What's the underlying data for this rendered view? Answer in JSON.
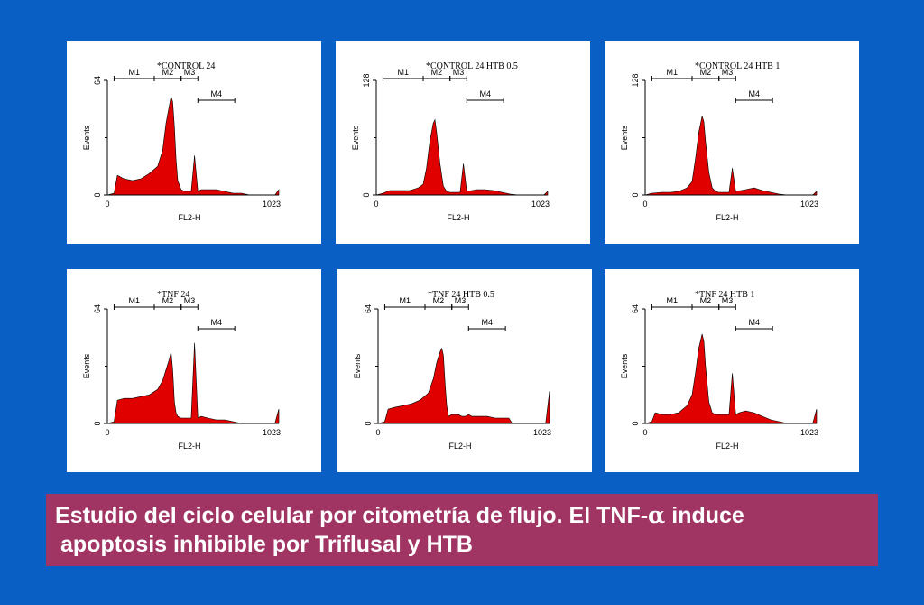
{
  "caption": {
    "line1_pre": "Estudio del ciclo celular por citometría de flujo. El TNF-",
    "alpha": "α",
    "line1_post": " induce",
    "line2": "apoptosis inhibible por Triflusal y HTB"
  },
  "chart_data": [
    {
      "type": "area",
      "title": "*CONTROL 24",
      "xlabel": "FL2-H",
      "ylabel": "Events",
      "xlim": [
        0,
        1023
      ],
      "ylim": [
        0,
        64
      ],
      "xticks": [
        "0",
        "1023"
      ],
      "yticks": [
        "0",
        "64"
      ],
      "markers": [
        {
          "name": "M1",
          "range": [
            40,
            280
          ]
        },
        {
          "name": "M2",
          "range": [
            280,
            440
          ]
        },
        {
          "name": "M3",
          "range": [
            440,
            540
          ]
        },
        {
          "name": "M4",
          "range": [
            540,
            760
          ]
        }
      ],
      "series": [
        {
          "x": [
            0,
            40,
            60,
            100,
            150,
            200,
            250,
            300,
            330,
            350,
            370,
            380,
            390,
            400,
            410,
            420,
            440,
            460,
            480,
            500,
            520,
            540,
            560,
            600,
            650,
            700,
            750,
            800,
            850,
            900,
            950,
            1000,
            1023
          ],
          "y": [
            0,
            1,
            11,
            9,
            8,
            9,
            12,
            16,
            25,
            40,
            50,
            55,
            52,
            38,
            20,
            8,
            3,
            2,
            2,
            2,
            22,
            2,
            3,
            3,
            3,
            2,
            1,
            1,
            0,
            0,
            0,
            0,
            3
          ]
        }
      ]
    },
    {
      "type": "area",
      "title": "*CONTROL 24 HTB 0.5",
      "xlabel": "FL2-H",
      "ylabel": "Events",
      "xlim": [
        0,
        1023
      ],
      "ylim": [
        0,
        128
      ],
      "xticks": [
        "0",
        "1023"
      ],
      "yticks": [
        "0",
        "128"
      ],
      "markers": [
        {
          "name": "M1",
          "range": [
            40,
            280
          ]
        },
        {
          "name": "M2",
          "range": [
            280,
            440
          ]
        },
        {
          "name": "M3",
          "range": [
            440,
            540
          ]
        },
        {
          "name": "M4",
          "range": [
            540,
            760
          ]
        }
      ],
      "series": [
        {
          "x": [
            0,
            40,
            80,
            150,
            200,
            250,
            280,
            300,
            320,
            340,
            350,
            360,
            380,
            400,
            420,
            440,
            460,
            480,
            500,
            520,
            540,
            600,
            650,
            700,
            750,
            800,
            850,
            900,
            950,
            1000,
            1023
          ],
          "y": [
            0,
            2,
            5,
            5,
            5,
            8,
            12,
            30,
            60,
            80,
            84,
            70,
            35,
            10,
            4,
            3,
            3,
            3,
            3,
            35,
            4,
            6,
            6,
            5,
            3,
            1,
            0,
            0,
            0,
            0,
            4
          ]
        }
      ]
    },
    {
      "type": "area",
      "title": "*CONTROL 24 HTB 1",
      "xlabel": "FL2-H",
      "ylabel": "Events",
      "xlim": [
        0,
        1023
      ],
      "ylim": [
        0,
        128
      ],
      "xticks": [
        "0",
        "1023"
      ],
      "yticks": [
        "0",
        "128"
      ],
      "markers": [
        {
          "name": "M1",
          "range": [
            40,
            280
          ]
        },
        {
          "name": "M2",
          "range": [
            280,
            440
          ]
        },
        {
          "name": "M3",
          "range": [
            440,
            540
          ]
        },
        {
          "name": "M4",
          "range": [
            540,
            760
          ]
        }
      ],
      "series": [
        {
          "x": [
            0,
            40,
            100,
            150,
            200,
            250,
            280,
            300,
            320,
            340,
            350,
            360,
            380,
            400,
            420,
            440,
            460,
            480,
            500,
            520,
            540,
            600,
            650,
            700,
            750,
            800,
            850,
            900,
            950,
            1000,
            1023
          ],
          "y": [
            0,
            2,
            3,
            3,
            4,
            8,
            15,
            40,
            70,
            88,
            82,
            60,
            25,
            8,
            4,
            3,
            3,
            3,
            3,
            30,
            4,
            6,
            8,
            5,
            3,
            1,
            0,
            0,
            0,
            0,
            4
          ]
        }
      ]
    },
    {
      "type": "area",
      "title": "*TNF 24",
      "xlabel": "FL2-H",
      "ylabel": "Events",
      "xlim": [
        0,
        1023
      ],
      "ylim": [
        0,
        64
      ],
      "xticks": [
        "0",
        "1023"
      ],
      "yticks": [
        "0",
        "64"
      ],
      "markers": [
        {
          "name": "M1",
          "range": [
            40,
            280
          ]
        },
        {
          "name": "M2",
          "range": [
            280,
            440
          ]
        },
        {
          "name": "M3",
          "range": [
            440,
            540
          ]
        },
        {
          "name": "M4",
          "range": [
            540,
            760
          ]
        }
      ],
      "series": [
        {
          "x": [
            0,
            40,
            60,
            100,
            150,
            200,
            250,
            300,
            330,
            350,
            370,
            380,
            390,
            400,
            410,
            420,
            440,
            460,
            480,
            500,
            520,
            540,
            560,
            600,
            650,
            700,
            750,
            800,
            850,
            900,
            950,
            1000,
            1023
          ],
          "y": [
            0,
            1,
            13,
            14,
            14,
            15,
            16,
            19,
            24,
            30,
            36,
            40,
            30,
            12,
            6,
            4,
            3,
            3,
            3,
            3,
            45,
            3,
            4,
            3,
            2,
            2,
            1,
            0,
            0,
            0,
            0,
            0,
            8
          ]
        }
      ]
    },
    {
      "type": "area",
      "title": "*TNF 24 HTB 0.5",
      "xlabel": "FL2-H",
      "ylabel": "Events",
      "xlim": [
        0,
        1023
      ],
      "ylim": [
        0,
        64
      ],
      "xticks": [
        "0",
        "1023"
      ],
      "yticks": [
        "0",
        "64"
      ],
      "markers": [
        {
          "name": "M1",
          "range": [
            40,
            280
          ]
        },
        {
          "name": "M2",
          "range": [
            280,
            440
          ]
        },
        {
          "name": "M3",
          "range": [
            440,
            540
          ]
        },
        {
          "name": "M4",
          "range": [
            540,
            760
          ]
        }
      ],
      "series": [
        {
          "x": [
            0,
            40,
            60,
            100,
            150,
            200,
            250,
            300,
            330,
            350,
            370,
            380,
            390,
            400,
            410,
            420,
            440,
            460,
            480,
            500,
            520,
            540,
            560,
            600,
            650,
            700,
            750,
            780,
            800,
            850,
            900,
            950,
            1000,
            1023
          ],
          "y": [
            0,
            1,
            8,
            9,
            10,
            11,
            13,
            17,
            25,
            34,
            40,
            42,
            38,
            22,
            10,
            4,
            5,
            5,
            5,
            4,
            4,
            5,
            4,
            4,
            4,
            3,
            3,
            3,
            0,
            0,
            0,
            0,
            0,
            18
          ]
        }
      ]
    },
    {
      "type": "area",
      "title": "*TNF 24 HTB 1",
      "xlabel": "FL2-H",
      "ylabel": "Events",
      "xlim": [
        0,
        1023
      ],
      "ylim": [
        0,
        64
      ],
      "xticks": [
        "0",
        "1023"
      ],
      "yticks": [
        "0",
        "64"
      ],
      "markers": [
        {
          "name": "M1",
          "range": [
            40,
            280
          ]
        },
        {
          "name": "M2",
          "range": [
            280,
            440
          ]
        },
        {
          "name": "M3",
          "range": [
            440,
            540
          ]
        },
        {
          "name": "M4",
          "range": [
            540,
            760
          ]
        }
      ],
      "series": [
        {
          "x": [
            0,
            40,
            60,
            100,
            150,
            200,
            250,
            280,
            300,
            320,
            340,
            350,
            360,
            380,
            400,
            420,
            440,
            460,
            480,
            500,
            520,
            540,
            560,
            600,
            650,
            700,
            750,
            800,
            850,
            900,
            950,
            1000,
            1023
          ],
          "y": [
            0,
            1,
            6,
            5,
            5,
            6,
            10,
            16,
            28,
            42,
            50,
            46,
            32,
            12,
            6,
            5,
            5,
            5,
            5,
            5,
            28,
            5,
            6,
            7,
            6,
            4,
            2,
            1,
            0,
            0,
            0,
            0,
            8
          ]
        }
      ]
    }
  ]
}
